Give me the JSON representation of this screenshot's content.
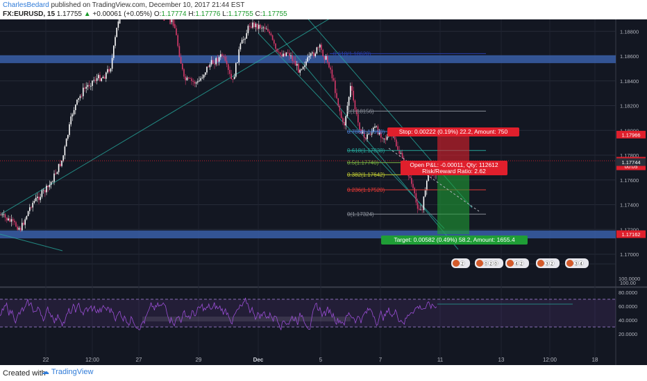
{
  "header": {
    "author": "CharlesBedard",
    "published": "published on TradingView.com, December 10, 2017 21:44 EST",
    "symbol": "FX:EURUSD, 15",
    "last": "1.17755",
    "change_arrow": "▲",
    "change": "+0.00061 (+0.05%)",
    "o_label": "O:",
    "o_val": "1.17774",
    "h_label": "H:",
    "h_val": "1.17776",
    "l_label": "L:",
    "l_val": "1.17755",
    "c_label": "C:",
    "c_val": "1.17755"
  },
  "footer": {
    "created": "Created with",
    "brand": "TradingView"
  },
  "colors": {
    "background": "#131722",
    "up": "#ffffff",
    "down": "#d63a6a",
    "zone": "#3a5fa8",
    "channel": "#26a69a",
    "rsi": "#9b4fd6",
    "stop": "#e01f2c",
    "target": "#1f9e36"
  },
  "chart_data": [
    {
      "type": "candlestick",
      "symbol": "FX:EURUSD",
      "interval": "15",
      "x_ticks": [
        "22",
        "12:00",
        "27",
        "29",
        "Dec",
        "5",
        "7",
        "11",
        "13",
        "12:00",
        "18"
      ],
      "y_ticks": [
        1.17,
        1.172,
        1.174,
        1.176,
        1.178,
        1.18,
        1.182,
        1.184,
        1.186,
        1.188
      ],
      "y_tick_labels": [
        "1.17000",
        "1.17200",
        "1.17400",
        "1.17600",
        "1.17800",
        "1.18000",
        "1.18200",
        "1.18400",
        "1.18600",
        "1.18800"
      ],
      "ylim": [
        1.1686,
        1.1892
      ],
      "extra_axis_label": "100.00",
      "price_markers": [
        {
          "label": "1.17966",
          "value": 1.17966,
          "color": "#e01f2c"
        },
        {
          "label": "1.17755",
          "value": 1.17755,
          "color": "#e01f2c"
        },
        {
          "label": "00:05",
          "value": 1.1771,
          "color": "#e01f2c"
        },
        {
          "label": "1.17744",
          "value": 1.17744,
          "color": "#2a2e39"
        },
        {
          "label": "1.17162",
          "value": 1.17162,
          "color": "#e01f2c"
        }
      ],
      "zones": [
        {
          "name": "resistance-zone",
          "from": 1.1856,
          "to": 1.1859
        },
        {
          "name": "support-zone",
          "from": 1.17145,
          "to": 1.17175
        }
      ],
      "fibonacci": [
        {
          "label": "0.618(1.18620)",
          "value": 1.1862
        },
        {
          "label": "1(1.18156)",
          "value": 1.18156
        },
        {
          "label": "0.786(1.17990)",
          "value": 1.1799
        },
        {
          "label": "0.618(1.17838)",
          "value": 1.17838
        },
        {
          "label": "0.5(1.17740)",
          "value": 1.1774
        },
        {
          "label": "0.382(1.17642)",
          "value": 1.17642
        },
        {
          "label": "0.236(1.17520)",
          "value": 1.1752
        },
        {
          "label": "0(1.17324)",
          "value": 1.17324
        }
      ],
      "position": {
        "stop_label": "Stop: 0.00222 (0.19%) 22.2, Amount: 750",
        "stop_price": 1.17966,
        "entry_price": 1.17744,
        "target_label": "Target: 0.00582 (0.49%) 58.2, Amount: 1655.4",
        "target_price": 1.17162,
        "pnl_label": "Open P&L: -0.00011, Qty: 112612",
        "rr_label": "Risk/Reward Ratio: 2.62"
      },
      "event_badges": [
        "2",
        "0",
        "2",
        "0",
        "4",
        "2",
        "3",
        "2",
        "3",
        "4"
      ]
    },
    {
      "type": "line",
      "name": "RSI",
      "y_tick_labels": [
        "100.0000",
        "80.0000",
        "60.0000",
        "40.0000",
        "20.0000"
      ],
      "ylim": [
        10,
        105
      ],
      "bands": [
        30,
        70
      ],
      "last_value": 63
    }
  ]
}
